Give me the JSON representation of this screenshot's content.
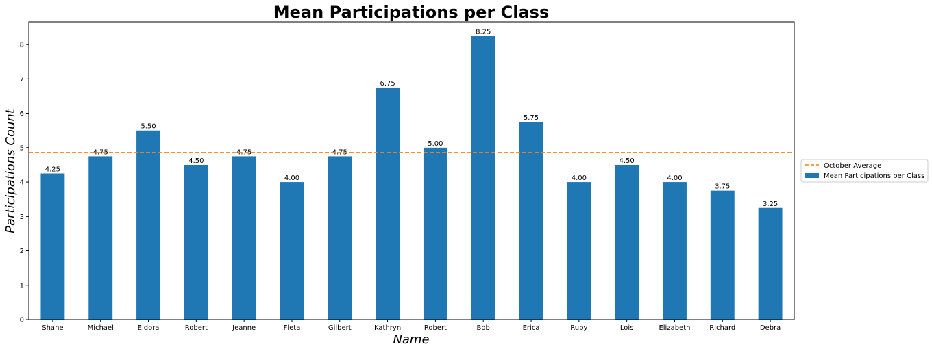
{
  "chart_data": {
    "type": "bar",
    "title": "Mean Participations per Class",
    "xlabel": "Name",
    "ylabel": "Participations Count",
    "categories": [
      "Shane",
      "Michael",
      "Eldora",
      "Robert",
      "Jeanne",
      "Fleta",
      "Gilbert",
      "Kathryn",
      "Robert",
      "Bob",
      "Erica",
      "Ruby",
      "Lois",
      "Elizabeth",
      "Richard",
      "Debra"
    ],
    "series": [
      {
        "name": "Mean Participations per Class",
        "color": "#1f77b4",
        "values": [
          4.25,
          4.75,
          5.5,
          4.5,
          4.75,
          4.0,
          4.75,
          6.75,
          5.0,
          8.25,
          5.75,
          4.0,
          4.5,
          4.0,
          3.75,
          3.25
        ]
      }
    ],
    "data_labels": [
      "4.25",
      "4.75",
      "5.50",
      "4.50",
      "4.75",
      "4.00",
      "4.75",
      "6.75",
      "5.00",
      "8.25",
      "5.75",
      "4.00",
      "4.50",
      "4.00",
      "3.75",
      "3.25"
    ],
    "reference_line": {
      "name": "October Average",
      "value": 4.86,
      "color": "#ff7f0e",
      "style": "dashed"
    },
    "ylim": [
      0,
      8.66
    ],
    "yticks": [
      "0",
      "1",
      "2",
      "3",
      "4",
      "5",
      "6",
      "7",
      "8"
    ],
    "grid": false,
    "legend": {
      "placement": "right-outside",
      "entries": [
        "October Average",
        "Mean Participations per Class"
      ]
    }
  }
}
